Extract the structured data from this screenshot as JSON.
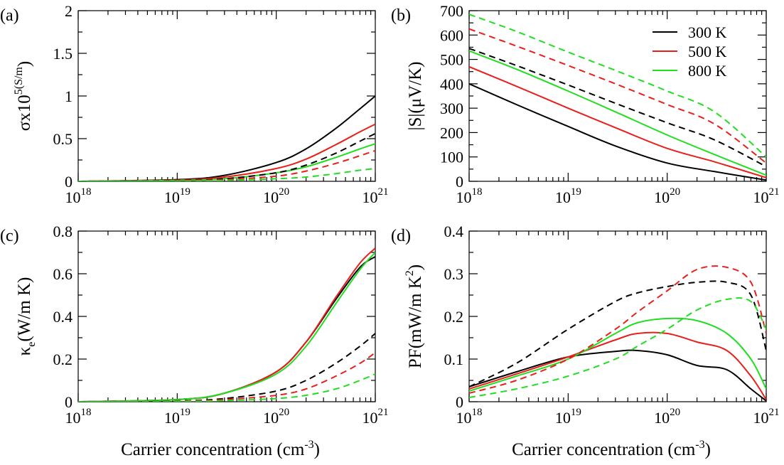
{
  "figure": {
    "xlabel": {
      "text": "Carrier concentration (cm",
      "sup": "-3",
      "close": ")"
    },
    "colors": {
      "300 K": "#000000",
      "500 K": "#e8201c",
      "800 K": "#22dd22"
    },
    "line_styles": {
      "solid": "solid",
      "dashed": "dashed"
    }
  },
  "chart_data": [
    {
      "panel": "(a)",
      "type": "line",
      "xscale": "log",
      "xlim": [
        1e+18,
        1e+21
      ],
      "x_ticks": [
        "10^18",
        "10^19",
        "10^20",
        "10^21"
      ],
      "ylabel": "σx10^5(S/m)",
      "ylim": [
        0,
        2
      ],
      "y_ticks": [
        "0",
        "0.5",
        "1",
        "1.5",
        "2"
      ],
      "y_tick_values": [
        0,
        0.5,
        1,
        1.5,
        2
      ],
      "legend": false,
      "x": [
        1e+18,
        1e+19,
        3e+19,
        1e+20,
        2e+20,
        4e+20,
        7e+20,
        1e+21
      ],
      "series": [
        {
          "name": "300 K",
          "style": "solid",
          "color": "#000000",
          "values": [
            0.0,
            0.02,
            0.07,
            0.22,
            0.38,
            0.62,
            0.85,
            1.0
          ]
        },
        {
          "name": "500 K",
          "style": "solid",
          "color": "#e8201c",
          "values": [
            0.0,
            0.015,
            0.05,
            0.15,
            0.26,
            0.43,
            0.58,
            0.67
          ]
        },
        {
          "name": "800 K",
          "style": "solid",
          "color": "#22dd22",
          "values": [
            0.0,
            0.01,
            0.03,
            0.1,
            0.17,
            0.28,
            0.38,
            0.44
          ]
        },
        {
          "name": "300 K",
          "style": "dashed",
          "color": "#000000",
          "values": [
            0.0,
            0.01,
            0.03,
            0.1,
            0.19,
            0.33,
            0.47,
            0.56
          ]
        },
        {
          "name": "500 K",
          "style": "dashed",
          "color": "#e8201c",
          "values": [
            0.0,
            0.007,
            0.02,
            0.06,
            0.12,
            0.21,
            0.3,
            0.36
          ]
        },
        {
          "name": "800 K",
          "style": "dashed",
          "color": "#22dd22",
          "values": [
            0.0,
            0.003,
            0.01,
            0.03,
            0.05,
            0.09,
            0.13,
            0.15
          ]
        }
      ]
    },
    {
      "panel": "(b)",
      "type": "line",
      "xscale": "log",
      "xlim": [
        1e+18,
        1e+21
      ],
      "x_ticks": [
        "10^18",
        "10^19",
        "10^20",
        "10^21"
      ],
      "ylabel": "|S|(μV/K)",
      "ylim": [
        0,
        700
      ],
      "y_ticks": [
        "0",
        "100",
        "200",
        "300",
        "400",
        "500",
        "600",
        "700"
      ],
      "y_tick_values": [
        0,
        100,
        200,
        300,
        400,
        500,
        600,
        700
      ],
      "legend": true,
      "legend_position": "top-right",
      "legend_entries": [
        "300 K",
        "500 K",
        "800 K"
      ],
      "x": [
        1e+18,
        3e+18,
        1e+19,
        3e+19,
        1e+20,
        3e+20,
        1e+21
      ],
      "series": [
        {
          "name": "300 K",
          "style": "solid",
          "color": "#000000",
          "values": [
            400,
            315,
            225,
            145,
            75,
            40,
            5
          ]
        },
        {
          "name": "500 K",
          "style": "solid",
          "color": "#e8201c",
          "values": [
            470,
            390,
            300,
            220,
            135,
            80,
            15
          ]
        },
        {
          "name": "800 K",
          "style": "solid",
          "color": "#22dd22",
          "values": [
            535,
            460,
            370,
            285,
            190,
            110,
            25
          ]
        },
        {
          "name": "300 K",
          "style": "dashed",
          "color": "#000000",
          "values": [
            545,
            475,
            395,
            320,
            240,
            170,
            60
          ]
        },
        {
          "name": "500 K",
          "style": "dashed",
          "color": "#e8201c",
          "values": [
            625,
            555,
            475,
            400,
            315,
            235,
            75
          ]
        },
        {
          "name": "800 K",
          "style": "dashed",
          "color": "#22dd22",
          "values": [
            685,
            615,
            530,
            455,
            370,
            285,
            100
          ]
        }
      ]
    },
    {
      "panel": "(c)",
      "type": "line",
      "xscale": "log",
      "xlim": [
        1e+18,
        1e+21
      ],
      "x_ticks": [
        "10^18",
        "10^19",
        "10^20",
        "10^21"
      ],
      "ylabel": "κe(W/m K)",
      "ylim": [
        0,
        0.8
      ],
      "y_ticks": [
        "0",
        "0.2",
        "0.4",
        "0.6",
        "0.8"
      ],
      "y_tick_values": [
        0,
        0.2,
        0.4,
        0.6,
        0.8
      ],
      "legend": false,
      "x": [
        1e+18,
        1e+19,
        3e+19,
        1e+20,
        2e+20,
        4e+20,
        7e+20,
        1e+21
      ],
      "series": [
        {
          "name": "300 K",
          "style": "solid",
          "color": "#000000",
          "values": [
            0.0,
            0.01,
            0.04,
            0.14,
            0.28,
            0.48,
            0.63,
            0.68
          ]
        },
        {
          "name": "500 K",
          "style": "solid",
          "color": "#e8201c",
          "values": [
            0.0,
            0.01,
            0.04,
            0.14,
            0.28,
            0.49,
            0.65,
            0.72
          ]
        },
        {
          "name": "800 K",
          "style": "solid",
          "color": "#22dd22",
          "values": [
            0.0,
            0.01,
            0.04,
            0.13,
            0.26,
            0.46,
            0.62,
            0.7
          ]
        },
        {
          "name": "300 K",
          "style": "dashed",
          "color": "#000000",
          "values": [
            0.0,
            0.004,
            0.015,
            0.05,
            0.1,
            0.18,
            0.26,
            0.32
          ]
        },
        {
          "name": "500 K",
          "style": "dashed",
          "color": "#e8201c",
          "values": [
            0.0,
            0.003,
            0.01,
            0.03,
            0.06,
            0.12,
            0.18,
            0.23
          ]
        },
        {
          "name": "800 K",
          "style": "dashed",
          "color": "#22dd22",
          "values": [
            0.0,
            0.002,
            0.005,
            0.015,
            0.03,
            0.06,
            0.1,
            0.13
          ]
        }
      ]
    },
    {
      "panel": "(d)",
      "type": "line",
      "xscale": "log",
      "xlim": [
        1e+18,
        1e+21
      ],
      "x_ticks": [
        "10^18",
        "10^19",
        "10^20",
        "10^21"
      ],
      "ylabel": "PF(mW/m K^2)",
      "ylim": [
        0,
        0.4
      ],
      "y_ticks": [
        "0",
        "0.1",
        "0.2",
        "0.3",
        "0.4"
      ],
      "y_tick_values": [
        0,
        0.1,
        0.2,
        0.3,
        0.4
      ],
      "legend": false,
      "x": [
        1e+18,
        3e+18,
        1e+19,
        3e+19,
        5e+19,
        1e+20,
        2e+20,
        4e+20,
        7e+20,
        1e+21
      ],
      "series": [
        {
          "name": "300 K",
          "style": "solid",
          "color": "#000000",
          "values": [
            0.035,
            0.07,
            0.105,
            0.118,
            0.12,
            0.11,
            0.085,
            0.075,
            0.03,
            0.002
          ]
        },
        {
          "name": "500 K",
          "style": "solid",
          "color": "#e8201c",
          "values": [
            0.03,
            0.065,
            0.105,
            0.145,
            0.16,
            0.16,
            0.14,
            0.12,
            0.06,
            0.005
          ]
        },
        {
          "name": "800 K",
          "style": "solid",
          "color": "#22dd22",
          "values": [
            0.025,
            0.06,
            0.1,
            0.16,
            0.185,
            0.195,
            0.19,
            0.16,
            0.1,
            0.03
          ]
        },
        {
          "name": "300 K",
          "style": "dashed",
          "color": "#000000",
          "values": [
            0.035,
            0.09,
            0.17,
            0.235,
            0.255,
            0.27,
            0.28,
            0.28,
            0.25,
            0.12
          ]
        },
        {
          "name": "500 K",
          "style": "dashed",
          "color": "#e8201c",
          "values": [
            0.02,
            0.05,
            0.1,
            0.17,
            0.21,
            0.26,
            0.31,
            0.315,
            0.28,
            0.16
          ]
        },
        {
          "name": "800 K",
          "style": "dashed",
          "color": "#22dd22",
          "values": [
            0.01,
            0.03,
            0.06,
            0.1,
            0.13,
            0.17,
            0.215,
            0.24,
            0.235,
            0.17
          ]
        }
      ]
    }
  ]
}
